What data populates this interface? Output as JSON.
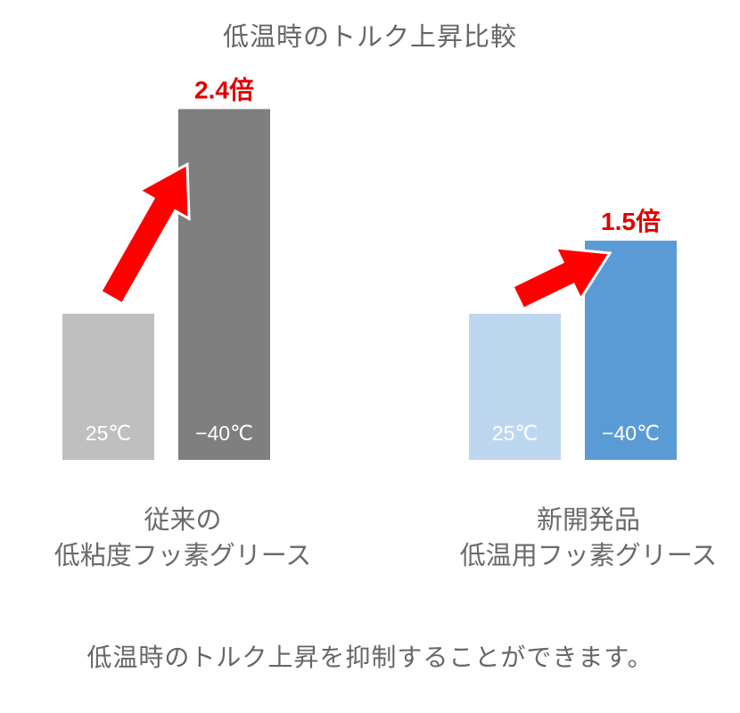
{
  "chart_data": {
    "type": "bar",
    "title": "低温時のトルク上昇比較",
    "groups": [
      {
        "label_lines": [
          "従来の",
          "低粘度フッ素グリース"
        ],
        "bars": [
          {
            "label": "25℃",
            "value": 1.0,
            "color": "#bfbfbf"
          },
          {
            "label": "−40℃",
            "value": 2.4,
            "color": "#7f7f7f"
          }
        ],
        "ratio_label": "2.4倍"
      },
      {
        "label_lines": [
          "新開発品",
          "低温用フッ素グリース"
        ],
        "bars": [
          {
            "label": "25℃",
            "value": 1.0,
            "color": "#bdd7ee"
          },
          {
            "label": "−40℃",
            "value": 1.5,
            "color": "#5b9bd5"
          }
        ],
        "ratio_label": "1.5倍"
      }
    ],
    "colors": {
      "arrow": "#ff0000",
      "ratio_text": "#e00000",
      "bar_text": "#ffffff"
    }
  },
  "footer": "低温時のトルク上昇を抑制することができます。"
}
